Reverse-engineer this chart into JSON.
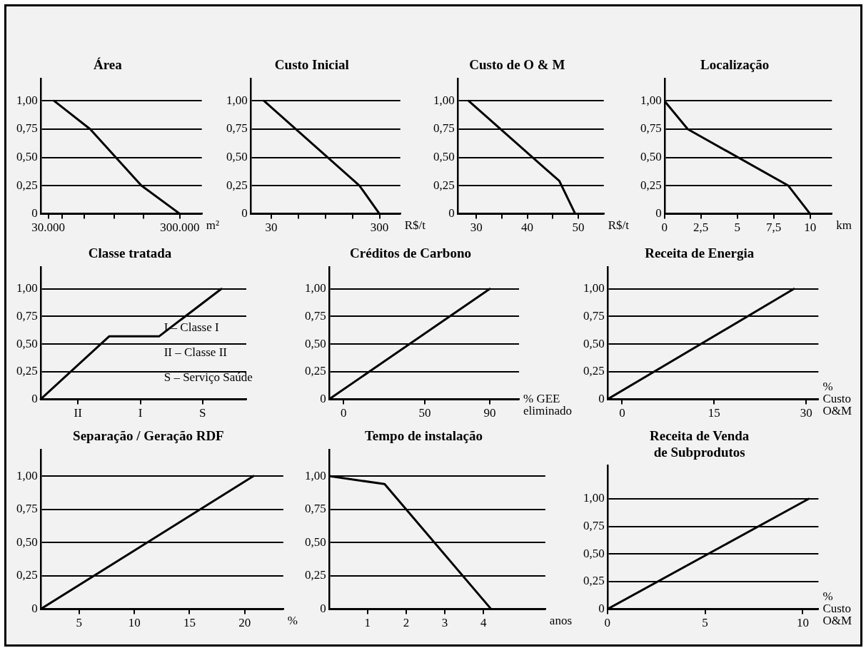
{
  "chart_data": [
    {
      "type": "line",
      "title": "Área",
      "xlabel": "m²",
      "x": [
        42000,
        116000,
        221000,
        300000
      ],
      "values": [
        1,
        0.75,
        0.25,
        0
      ],
      "color": "#000000",
      "xlim": [
        14000,
        345000
      ],
      "xticks": [
        {
          "value": 30000,
          "label": "30.000"
        },
        {
          "value": 58000,
          "label": null
        },
        {
          "value": 104000,
          "label": null
        },
        {
          "value": 165000,
          "label": null
        },
        {
          "value": 225000,
          "label": null
        },
        {
          "value": 300000,
          "label": "300.000"
        }
      ],
      "ylim": [
        0,
        1.2
      ],
      "yticks": [
        {
          "value": 0,
          "label": "0"
        },
        {
          "value": 0.25,
          "label": "0,25"
        },
        {
          "value": 0.5,
          "label": "0,50"
        },
        {
          "value": 0.75,
          "label": "0,75"
        },
        {
          "value": 1,
          "label": "1,00"
        }
      ],
      "grid": "y"
    },
    {
      "type": "line",
      "title": "Custo Inicial",
      "xlabel": "R$/t",
      "x": [
        12,
        250,
        300
      ],
      "values": [
        1,
        0.25,
        0
      ],
      "color": "#000000",
      "xlim": [
        -22,
        352
      ],
      "xticks": [
        30,
        {
          "value": 97.5,
          "label": null
        },
        {
          "value": 165,
          "label": null
        },
        {
          "value": 232.5,
          "label": null
        },
        300
      ],
      "ylim": [
        0,
        1.2
      ],
      "yticks": [
        {
          "value": 0,
          "label": "0"
        },
        {
          "value": 0.25,
          "label": "0,25"
        },
        {
          "value": 0.5,
          "label": "0,50"
        },
        {
          "value": 0.75,
          "label": "0,75"
        },
        {
          "value": 1,
          "label": "1,00"
        }
      ],
      "grid": "y"
    },
    {
      "type": "line",
      "title": "Custo de O & M",
      "xlabel": "R$/t",
      "x": [
        28.5,
        46.3,
        49.4
      ],
      "values": [
        1,
        0.29,
        0
      ],
      "color": "#000000",
      "xlim": [
        26.3,
        55
      ],
      "xticks": [
        30,
        {
          "value": 35,
          "label": null
        },
        40,
        {
          "value": 45,
          "label": null
        },
        50
      ],
      "ylim": [
        0,
        1.2
      ],
      "yticks": [
        {
          "value": 0,
          "label": "0"
        },
        {
          "value": 0.25,
          "label": "0,25"
        },
        {
          "value": 0.5,
          "label": "0,50"
        },
        {
          "value": 0.75,
          "label": "0,75"
        },
        {
          "value": 1,
          "label": "1,00"
        }
      ],
      "grid": "y"
    },
    {
      "type": "line",
      "title": "Localização",
      "xlabel": "km",
      "x": [
        0,
        1.6,
        8.5,
        10
      ],
      "values": [
        1,
        0.75,
        0.25,
        0
      ],
      "color": "#000000",
      "xlim": [
        0,
        11.5
      ],
      "xticks": [
        0,
        {
          "value": 2.5,
          "label": "2,5"
        },
        5,
        {
          "value": 7.5,
          "label": "7,5"
        },
        10
      ],
      "ylim": [
        0,
        1.2
      ],
      "yticks": [
        {
          "value": 0,
          "label": "0"
        },
        {
          "value": 0.25,
          "label": "0,25"
        },
        {
          "value": 0.5,
          "label": "0,50"
        },
        {
          "value": 0.75,
          "label": "0,75"
        },
        {
          "value": 1,
          "label": "1,00"
        }
      ],
      "grid": "y"
    },
    {
      "type": "line",
      "title": "Classe tratada",
      "categories": [
        null,
        null,
        null,
        null,
        null,
        null,
        "II",
        null,
        null,
        null,
        null,
        null,
        null,
        null,
        null,
        null,
        "I",
        null,
        null,
        null,
        null,
        null,
        null,
        null,
        null,
        null,
        "S",
        null,
        null,
        null,
        null,
        null,
        null,
        null
      ],
      "values": [
        0,
        null,
        null,
        null,
        null,
        null,
        null,
        null,
        null,
        null,
        null,
        0.57,
        null,
        null,
        null,
        null,
        null,
        null,
        null,
        0.57,
        null,
        null,
        null,
        null,
        null,
        null,
        null,
        null,
        null,
        1,
        null,
        null,
        null,
        null
      ],
      "color": "#000000",
      "ylim": [
        0,
        1.2
      ],
      "yticks": [
        {
          "value": 0,
          "label": "0"
        },
        {
          "value": 0.25,
          "label": "0,25"
        },
        {
          "value": 0.5,
          "label": "0,50"
        },
        {
          "value": 0.75,
          "label": "0,75"
        },
        {
          "value": 1,
          "label": "1,00"
        }
      ],
      "grid": "y",
      "annotations": [
        "I – Classe I",
        "II – Classe II",
        "S – Serviço Saúde"
      ]
    },
    {
      "type": "line",
      "title": "Créditos de Carbono",
      "xlabel": "% GEE\neliminado",
      "x": [
        -9,
        90
      ],
      "values": [
        0,
        1
      ],
      "color": "#000000",
      "xlim": [
        -9,
        108
      ],
      "xticks": [
        0,
        50,
        90
      ],
      "ylim": [
        0,
        1.2
      ],
      "yticks": [
        {
          "value": 0,
          "label": "0"
        },
        {
          "value": 0.25,
          "label": "0,25"
        },
        {
          "value": 0.5,
          "label": "0,50"
        },
        {
          "value": 0.75,
          "label": "0,75"
        },
        {
          "value": 1,
          "label": "1,00"
        }
      ],
      "grid": "y"
    },
    {
      "type": "line",
      "title": "Receita de Energia",
      "xlabel": "%\nCusto\nO&M",
      "x": [
        -2.4,
        28
      ],
      "values": [
        0,
        1
      ],
      "color": "#000000",
      "xlim": [
        -2.4,
        32
      ],
      "xticks": [
        0,
        15,
        30
      ],
      "ylim": [
        0,
        1.2
      ],
      "yticks": [
        {
          "value": 0,
          "label": "0"
        },
        {
          "value": 0.25,
          "label": "0,25"
        },
        {
          "value": 0.5,
          "label": "0,50"
        },
        {
          "value": 0.75,
          "label": "0,75"
        },
        {
          "value": 1,
          "label": "1,00"
        }
      ],
      "grid": "y"
    },
    {
      "type": "line",
      "title": "Separação / Geração RDF",
      "xlabel": "%",
      "x": [
        1.5,
        20.8
      ],
      "values": [
        0,
        1
      ],
      "color": "#000000",
      "xlim": [
        1.5,
        23.5
      ],
      "xticks": [
        5,
        10,
        15,
        20
      ],
      "ylim": [
        0,
        1.2
      ],
      "yticks": [
        {
          "value": 0,
          "label": "0"
        },
        {
          "value": 0.25,
          "label": "0,25"
        },
        {
          "value": 0.5,
          "label": "0,50"
        },
        {
          "value": 0.75,
          "label": "0,75"
        },
        {
          "value": 1,
          "label": "1,00"
        }
      ],
      "grid": "y"
    },
    {
      "type": "line",
      "title": "Tempo de instalação",
      "xlabel": "anos",
      "x": [
        0,
        1.44,
        4.2
      ],
      "values": [
        1,
        0.94,
        0
      ],
      "color": "#000000",
      "xlim": [
        0,
        5.6
      ],
      "xticks": [
        1,
        2,
        3,
        4
      ],
      "ylim": [
        0,
        1.2
      ],
      "yticks": [
        {
          "value": 0,
          "label": "0"
        },
        {
          "value": 0.25,
          "label": "0,25"
        },
        {
          "value": 0.5,
          "label": "0,50"
        },
        {
          "value": 0.75,
          "label": "0,75"
        },
        {
          "value": 1,
          "label": "1,00"
        }
      ],
      "grid": "y"
    },
    {
      "type": "line",
      "title": "Receita de Venda\nde Subprodutos",
      "xlabel": "%\nCusto\nO&M",
      "x": [
        0,
        10.3
      ],
      "values": [
        0,
        1
      ],
      "color": "#000000",
      "xlim": [
        0,
        10.8
      ],
      "xticks": [
        0,
        5,
        10
      ],
      "ylim": [
        0,
        1.3
      ],
      "yticks": [
        {
          "value": 0,
          "label": "0"
        },
        {
          "value": 0.25,
          "label": "0,25"
        },
        {
          "value": 0.5,
          "label": "0,50"
        },
        {
          "value": 0.75,
          "label": "0,75"
        },
        {
          "value": 1,
          "label": "1,00"
        }
      ],
      "grid": "y"
    }
  ]
}
